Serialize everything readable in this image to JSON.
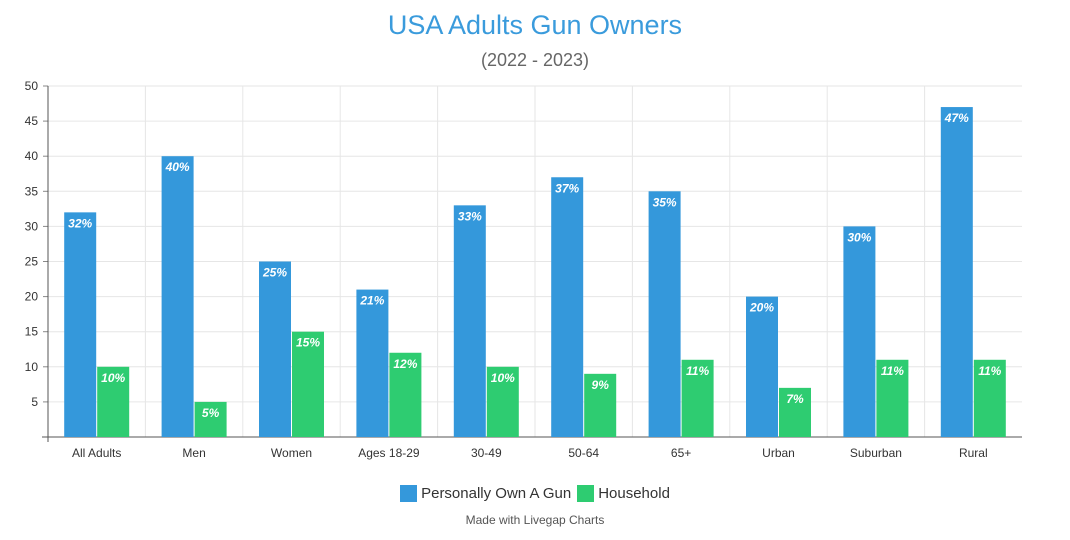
{
  "chart_data": {
    "type": "bar",
    "title": "USA Adults Gun Owners",
    "subtitle": "(2022 - 2023)",
    "categories": [
      "All Adults",
      "Men",
      "Women",
      "Ages 18-29",
      "30-49",
      "50-64",
      "65+",
      "Urban",
      "Suburban",
      "Rural"
    ],
    "series": [
      {
        "name": "Personally Own A Gun",
        "color": "#3498db",
        "values": [
          32,
          40,
          25,
          21,
          33,
          37,
          35,
          20,
          30,
          47
        ]
      },
      {
        "name": "Household",
        "color": "#2ecc71",
        "values": [
          10,
          5,
          15,
          12,
          10,
          9,
          11,
          7,
          11,
          11
        ]
      }
    ],
    "value_suffix": "%",
    "ylim": [
      0,
      50
    ],
    "yticks": [
      5,
      10,
      15,
      20,
      25,
      30,
      35,
      40,
      45,
      50
    ],
    "grid": true,
    "legend": "bottom-center",
    "xlabel": "",
    "ylabel": ""
  },
  "footer": {
    "credit": "Made with Livegap Charts"
  }
}
